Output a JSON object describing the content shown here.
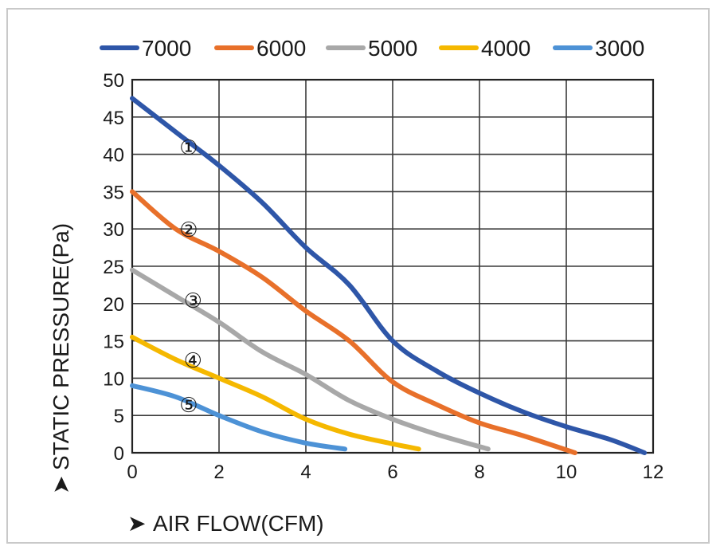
{
  "chart_data": {
    "type": "line",
    "xlabel": "AIR FLOW(CFM)",
    "ylabel": "STATIC PRESSURE(Pa)",
    "xlim": [
      0,
      12
    ],
    "ylim": [
      0,
      50
    ],
    "xticks": [
      "0",
      "2",
      "4",
      "6",
      "8",
      "10",
      "12"
    ],
    "yticks": [
      "0",
      "5",
      "10",
      "15",
      "20",
      "25",
      "30",
      "35",
      "40",
      "45",
      "50"
    ],
    "grid": true,
    "legend_position": "top",
    "axis_arrow_glyph": "➤",
    "series": [
      {
        "name": "7000",
        "color": "#2e56a8",
        "marker": "①",
        "marker_at": [
          1.3,
          41
        ],
        "points": [
          [
            0,
            47.5
          ],
          [
            1,
            43
          ],
          [
            2,
            38.5
          ],
          [
            3,
            33.5
          ],
          [
            4,
            27.5
          ],
          [
            5,
            22.5
          ],
          [
            6,
            15
          ],
          [
            7,
            11
          ],
          [
            8,
            8
          ],
          [
            9,
            5.5
          ],
          [
            10,
            3.5
          ],
          [
            11,
            1.8
          ],
          [
            11.8,
            0
          ]
        ]
      },
      {
        "name": "6000",
        "color": "#e8702a",
        "marker": "②",
        "marker_at": [
          1.3,
          30
        ],
        "points": [
          [
            0,
            35
          ],
          [
            1,
            30
          ],
          [
            2,
            27
          ],
          [
            3,
            23.5
          ],
          [
            4,
            19
          ],
          [
            5,
            15
          ],
          [
            6,
            9.5
          ],
          [
            7,
            6.5
          ],
          [
            8,
            4
          ],
          [
            9,
            2.3
          ],
          [
            10.2,
            0
          ]
        ]
      },
      {
        "name": "5000",
        "color": "#a8a8a8",
        "marker": "③",
        "marker_at": [
          1.4,
          20.5
        ],
        "points": [
          [
            0,
            24.5
          ],
          [
            1,
            21
          ],
          [
            2,
            17.5
          ],
          [
            3,
            13.5
          ],
          [
            4,
            10.5
          ],
          [
            5,
            7
          ],
          [
            6,
            4.5
          ],
          [
            7,
            2.5
          ],
          [
            8.2,
            0.5
          ]
        ]
      },
      {
        "name": "4000",
        "color": "#f5b800",
        "marker": "④",
        "marker_at": [
          1.4,
          12.5
        ],
        "points": [
          [
            0,
            15.5
          ],
          [
            1,
            12.5
          ],
          [
            2,
            10
          ],
          [
            3,
            7.5
          ],
          [
            4,
            4.5
          ],
          [
            5,
            2.5
          ],
          [
            6,
            1.2
          ],
          [
            6.6,
            0.5
          ]
        ]
      },
      {
        "name": "3000",
        "color": "#4d92d6",
        "marker": "⑤",
        "marker_at": [
          1.3,
          6.5
        ],
        "points": [
          [
            0,
            9
          ],
          [
            1,
            7.5
          ],
          [
            2,
            5
          ],
          [
            3,
            2.8
          ],
          [
            4,
            1.3
          ],
          [
            4.9,
            0.5
          ]
        ]
      }
    ]
  }
}
